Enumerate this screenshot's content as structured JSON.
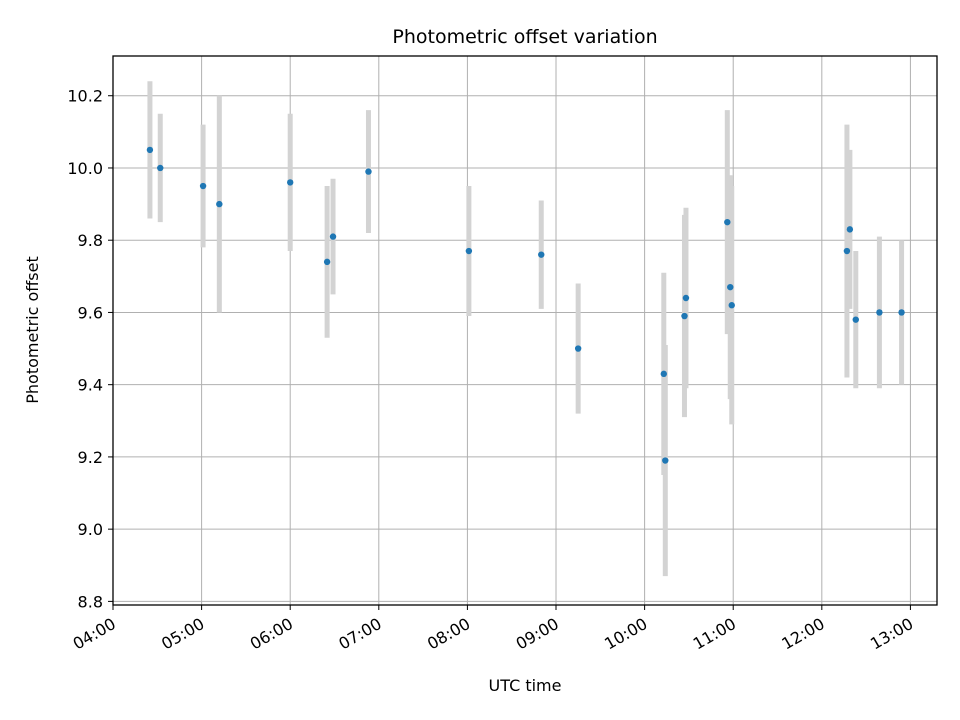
{
  "chart_data": {
    "type": "scatter",
    "title": "Photometric offset variation",
    "xlabel": "UTC time",
    "ylabel": "Photometric offset",
    "grid": true,
    "x_ticks": [
      "04:00",
      "05:00",
      "06:00",
      "07:00",
      "08:00",
      "09:00",
      "10:00",
      "11:00",
      "12:00",
      "13:00"
    ],
    "y_ticks": [
      "8.8",
      "9.0",
      "9.2",
      "9.4",
      "9.6",
      "9.8",
      "10.0",
      "10.2"
    ],
    "xlim": [
      "04:00",
      "13:18"
    ],
    "ylim": [
      8.79,
      10.31
    ],
    "colors": {
      "point": "#1f77b4",
      "errorbar": "#d3d3d3",
      "grid": "#b0b0b0"
    },
    "points": [
      {
        "x": "04:25",
        "y": 10.05,
        "yerr": 0.19
      },
      {
        "x": "04:32",
        "y": 10.0,
        "yerr": 0.15
      },
      {
        "x": "05:01",
        "y": 9.95,
        "yerr": 0.17
      },
      {
        "x": "05:12",
        "y": 9.9,
        "yerr": 0.3
      },
      {
        "x": "06:00",
        "y": 9.96,
        "yerr": 0.19
      },
      {
        "x": "06:25",
        "y": 9.74,
        "yerr": 0.21
      },
      {
        "x": "06:29",
        "y": 9.81,
        "yerr": 0.16
      },
      {
        "x": "06:53",
        "y": 9.99,
        "yerr": 0.17
      },
      {
        "x": "08:01",
        "y": 9.77,
        "yerr": 0.18
      },
      {
        "x": "08:50",
        "y": 9.76,
        "yerr": 0.15
      },
      {
        "x": "09:15",
        "y": 9.5,
        "yerr": 0.18
      },
      {
        "x": "10:13",
        "y": 9.43,
        "yerr": 0.28
      },
      {
        "x": "10:14",
        "y": 9.19,
        "yerr": 0.32
      },
      {
        "x": "10:27",
        "y": 9.59,
        "yerr": 0.28
      },
      {
        "x": "10:28",
        "y": 9.64,
        "yerr": 0.25
      },
      {
        "x": "10:56",
        "y": 9.85,
        "yerr": 0.31
      },
      {
        "x": "10:58",
        "y": 9.67,
        "yerr": 0.31
      },
      {
        "x": "10:59",
        "y": 9.62,
        "yerr": 0.33
      },
      {
        "x": "12:17",
        "y": 9.77,
        "yerr": 0.35
      },
      {
        "x": "12:19",
        "y": 9.83,
        "yerr": 0.22
      },
      {
        "x": "12:23",
        "y": 9.58,
        "yerr": 0.19
      },
      {
        "x": "12:39",
        "y": 9.6,
        "yerr": 0.21
      },
      {
        "x": "12:54",
        "y": 9.6,
        "yerr": 0.2
      }
    ]
  }
}
